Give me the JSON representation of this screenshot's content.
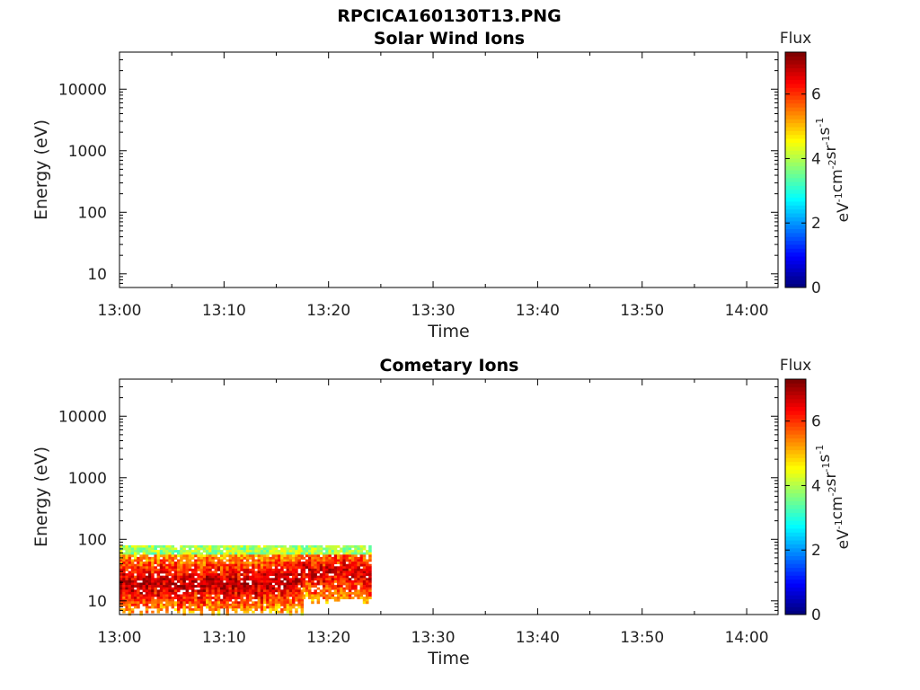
{
  "figure": {
    "title": "RPCICA160130T13.PNG"
  },
  "colorbar": {
    "label": "Flux",
    "unit_base": "eV",
    "unit_parts": [
      {
        "base": "eV",
        "exp": "-1"
      },
      {
        "base": "cm",
        "exp": "-2"
      },
      {
        "base": "sr",
        "exp": "-1"
      },
      {
        "base": "s",
        "exp": "-1"
      }
    ],
    "ticks": [
      "0",
      "2",
      "4",
      "6"
    ],
    "range": [
      0,
      7.3
    ],
    "colormap": "jet"
  },
  "chart_data": [
    {
      "type": "heatmap",
      "title": "Solar Wind Ions",
      "xlabel": "Time",
      "ylabel": "Energy (eV)",
      "y_scale": "log",
      "ylim": [
        6,
        40000
      ],
      "xlim": [
        "13:00",
        "14:03"
      ],
      "x_ticks": [
        "13:00",
        "13:10",
        "13:20",
        "13:30",
        "13:40",
        "13:50",
        "14:00"
      ],
      "y_ticks": [
        "10",
        "100",
        "1000",
        "10000"
      ],
      "data": []
    },
    {
      "type": "heatmap",
      "title": "Cometary Ions",
      "xlabel": "Time",
      "ylabel": "Energy (eV)",
      "y_scale": "log",
      "ylim": [
        6,
        40000
      ],
      "xlim": [
        "13:00",
        "14:03"
      ],
      "x_ticks": [
        "13:00",
        "13:10",
        "13:20",
        "13:30",
        "13:40",
        "13:50",
        "14:00"
      ],
      "y_ticks": [
        "10",
        "100",
        "1000",
        "10000"
      ],
      "data": [
        {
          "t_start": "13:00",
          "t_end": "13:17.5",
          "e_min": 6,
          "e_max": 80,
          "peak_energy": 20,
          "peak_flux": 7.0
        },
        {
          "t_start": "13:17.5",
          "t_end": "13:24",
          "e_min": 9,
          "e_max": 80,
          "peak_energy": 30,
          "peak_flux": 6.8
        }
      ]
    }
  ]
}
